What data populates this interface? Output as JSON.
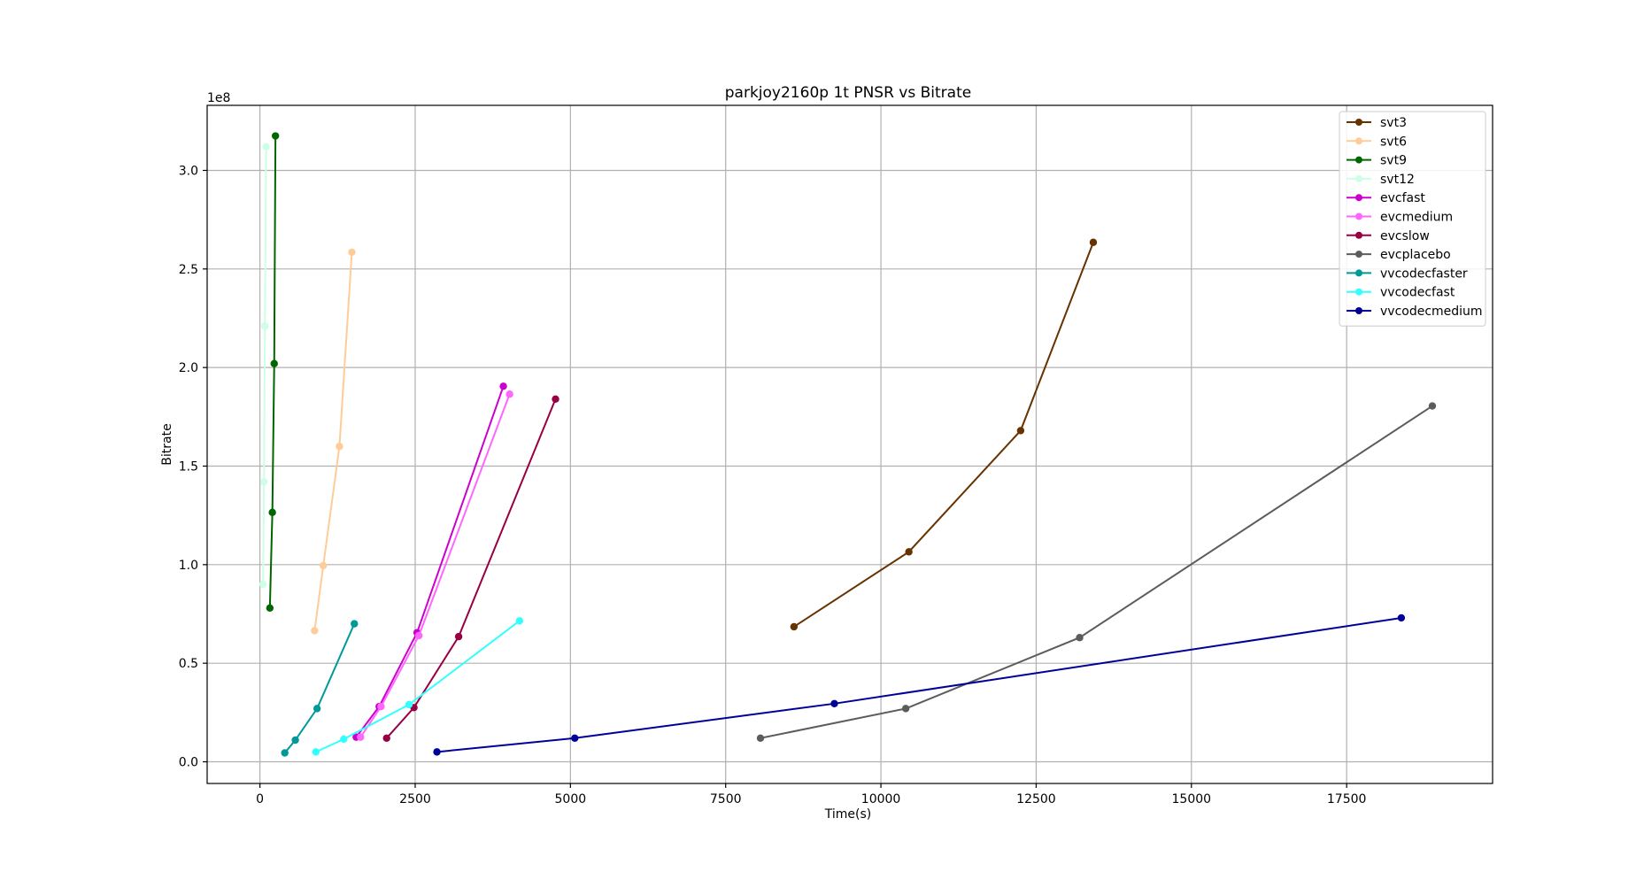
{
  "chart_data": {
    "type": "line",
    "title": "parkjoy2160p 1t PNSR vs Bitrate",
    "xlabel": "Time(s)",
    "ylabel": "Bitrate",
    "offset_label": "1e8",
    "xlim": [
      -850,
      19850
    ],
    "ylim": [
      -0.11,
      3.33
    ],
    "y_unit_multiplier": 100000000,
    "xticks": [
      0,
      2500,
      5000,
      7500,
      10000,
      12500,
      15000,
      17500
    ],
    "xtick_labels": [
      "0",
      "2500",
      "5000",
      "7500",
      "10000",
      "12500",
      "15000",
      "17500"
    ],
    "yticks": [
      0.0,
      0.5,
      1.0,
      1.5,
      2.0,
      2.5,
      3.0
    ],
    "ytick_labels": [
      "0.0",
      "0.5",
      "1.0",
      "1.5",
      "2.0",
      "2.5",
      "3.0"
    ],
    "grid": true,
    "legend_position": "top-right",
    "series": [
      {
        "name": "svt3",
        "color": "#663300",
        "x": [
          8600,
          10450,
          12250,
          13420
        ],
        "y": [
          0.685,
          1.065,
          1.68,
          2.635
        ]
      },
      {
        "name": "svt6",
        "color": "#ffcc99",
        "x": [
          880,
          1020,
          1280,
          1480
        ],
        "y": [
          0.665,
          0.995,
          1.6,
          2.585
        ]
      },
      {
        "name": "svt9",
        "color": "#006600",
        "x": [
          160,
          200,
          230,
          250
        ],
        "y": [
          0.78,
          1.265,
          2.02,
          3.175
        ]
      },
      {
        "name": "svt12",
        "color": "#ccffe6",
        "x": [
          50,
          65,
          80,
          100
        ],
        "y": [
          0.9,
          1.42,
          2.21,
          3.12
        ]
      },
      {
        "name": "evcfast",
        "color": "#cc00cc",
        "x": [
          1550,
          1920,
          2530,
          3920
        ],
        "y": [
          0.125,
          0.28,
          0.655,
          1.905
        ]
      },
      {
        "name": "evcmedium",
        "color": "#ff66ff",
        "x": [
          1620,
          1950,
          2560,
          4020
        ],
        "y": [
          0.125,
          0.28,
          0.64,
          1.865
        ]
      },
      {
        "name": "evcslow",
        "color": "#990044",
        "x": [
          2040,
          2480,
          3200,
          4760
        ],
        "y": [
          0.12,
          0.275,
          0.635,
          1.84
        ]
      },
      {
        "name": "evcplacebo",
        "color": "#5c5c5c",
        "x": [
          8060,
          10400,
          13200,
          18880
        ],
        "y": [
          0.12,
          0.27,
          0.63,
          1.805
        ]
      },
      {
        "name": "vvcodecfaster",
        "color": "#009999",
        "x": [
          400,
          570,
          920,
          1520
        ],
        "y": [
          0.045,
          0.11,
          0.27,
          0.7
        ]
      },
      {
        "name": "vvcodecfast",
        "color": "#33ffff",
        "x": [
          900,
          1350,
          2400,
          4180
        ],
        "y": [
          0.05,
          0.115,
          0.29,
          0.715
        ]
      },
      {
        "name": "vvcodecmedium",
        "color": "#000099",
        "x": [
          2850,
          5070,
          9250,
          18380
        ],
        "y": [
          0.05,
          0.12,
          0.295,
          0.73
        ]
      }
    ]
  }
}
